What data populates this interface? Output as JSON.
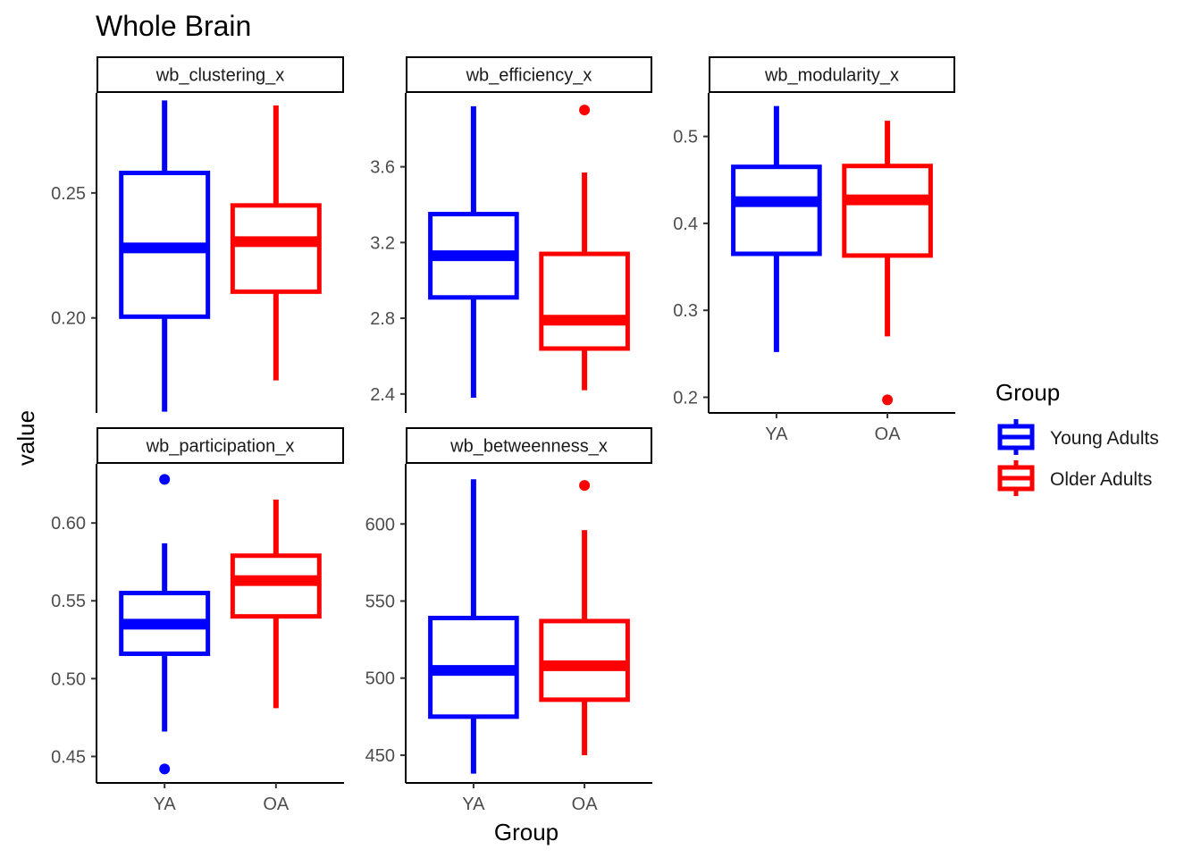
{
  "chart_data": {
    "type": "boxplot",
    "title": "Whole Brain",
    "xlabel": "Group",
    "ylabel": "value",
    "categories": [
      "YA",
      "OA"
    ],
    "legend": {
      "title": "Group",
      "position": "right",
      "entries": [
        {
          "label": "Young Adults",
          "color": "#0000ff"
        },
        {
          "label": "Older Adults",
          "color": "#ff0000"
        }
      ]
    },
    "grid": false,
    "facets": [
      {
        "label": "wb_clustering_x",
        "ylim": [
          0.162,
          0.29
        ],
        "yticks": [
          0.2,
          0.25
        ],
        "ytick_labels": [
          "0.20",
          "0.25"
        ],
        "boxes": [
          {
            "group": "YA",
            "min": 0.1625,
            "q1": 0.2005,
            "median": 0.228,
            "q3": 0.258,
            "max": 0.287,
            "outliers": []
          },
          {
            "group": "OA",
            "min": 0.175,
            "q1": 0.2105,
            "median": 0.2305,
            "q3": 0.245,
            "max": 0.285,
            "outliers": []
          }
        ]
      },
      {
        "label": "wb_efficiency_x",
        "ylim": [
          2.3,
          3.99
        ],
        "yticks": [
          2.4,
          2.8,
          3.2,
          3.6
        ],
        "ytick_labels": [
          "2.4",
          "2.8",
          "3.2",
          "3.6"
        ],
        "boxes": [
          {
            "group": "YA",
            "min": 2.38,
            "q1": 2.91,
            "median": 3.13,
            "q3": 3.35,
            "max": 3.92,
            "outliers": []
          },
          {
            "group": "OA",
            "min": 2.42,
            "q1": 2.64,
            "median": 2.79,
            "q3": 3.14,
            "max": 3.57,
            "outliers": [
              3.9
            ]
          }
        ]
      },
      {
        "label": "wb_modularity_x",
        "ylim": [
          0.182,
          0.55
        ],
        "yticks": [
          0.2,
          0.3,
          0.4,
          0.5
        ],
        "ytick_labels": [
          "0.2",
          "0.3",
          "0.4",
          "0.5"
        ],
        "boxes": [
          {
            "group": "YA",
            "min": 0.252,
            "q1": 0.365,
            "median": 0.425,
            "q3": 0.465,
            "max": 0.535,
            "outliers": []
          },
          {
            "group": "OA",
            "min": 0.27,
            "q1": 0.363,
            "median": 0.427,
            "q3": 0.466,
            "max": 0.518,
            "outliers": [
              0.197
            ]
          }
        ]
      },
      {
        "label": "wb_participation_x",
        "ylim": [
          0.433,
          0.638
        ],
        "yticks": [
          0.45,
          0.5,
          0.55,
          0.6
        ],
        "ytick_labels": [
          "0.45",
          "0.50",
          "0.55",
          "0.60"
        ],
        "boxes": [
          {
            "group": "YA",
            "min": 0.466,
            "q1": 0.516,
            "median": 0.535,
            "q3": 0.555,
            "max": 0.587,
            "outliers": [
              0.628,
              0.442
            ]
          },
          {
            "group": "OA",
            "min": 0.481,
            "q1": 0.54,
            "median": 0.563,
            "q3": 0.579,
            "max": 0.615,
            "outliers": []
          }
        ]
      },
      {
        "label": "wb_betweenness_x",
        "ylim": [
          432,
          639
        ],
        "yticks": [
          450,
          500,
          550,
          600
        ],
        "ytick_labels": [
          "450",
          "500",
          "550",
          "600"
        ],
        "boxes": [
          {
            "group": "YA",
            "min": 438,
            "q1": 475,
            "median": 505,
            "q3": 539,
            "max": 629,
            "outliers": []
          },
          {
            "group": "OA",
            "min": 450,
            "q1": 486,
            "median": 508,
            "q3": 537,
            "max": 596,
            "outliers": [
              625
            ]
          }
        ]
      }
    ]
  }
}
